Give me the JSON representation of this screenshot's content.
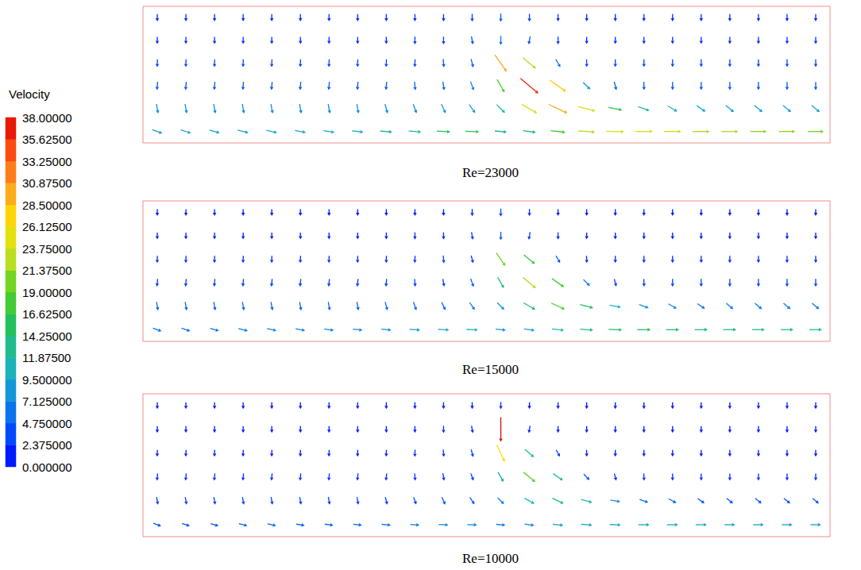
{
  "chart_data": [
    {
      "type": "quiver",
      "title": "Re=23000",
      "xlim": [
        0,
        24
      ],
      "ylim": [
        0,
        6
      ],
      "tick_labels": false,
      "x": [
        0.5,
        1.5,
        2.5,
        3.5,
        4.5,
        5.5,
        6.5,
        7.5,
        8.5,
        9.5,
        10.5,
        11.5,
        12.5,
        13.5,
        14.5,
        15.5,
        16.5,
        17.5,
        18.5,
        19.5,
        20.5,
        21.5,
        22.5,
        23.5
      ],
      "y": [
        5.5,
        4.5,
        3.5,
        2.5,
        1.5,
        0.5
      ],
      "speed": [
        [
          2,
          2,
          2,
          2,
          2,
          2,
          2,
          2,
          2,
          2,
          2,
          3,
          4,
          3,
          2,
          2,
          2,
          2,
          2,
          2,
          2,
          2,
          2,
          2
        ],
        [
          2,
          2,
          2,
          2,
          2,
          2,
          2,
          2,
          2,
          3,
          3,
          4,
          6,
          4,
          3,
          2,
          2,
          2,
          2,
          2,
          2,
          2,
          2,
          2
        ],
        [
          3,
          3,
          3,
          3,
          3,
          3,
          3,
          3,
          3,
          3,
          4,
          5,
          30,
          22,
          6,
          3,
          3,
          3,
          3,
          3,
          3,
          3,
          3,
          3
        ],
        [
          4,
          4,
          4,
          4,
          4,
          4,
          4,
          4,
          4,
          5,
          5,
          7,
          18,
          36,
          28,
          8,
          5,
          4,
          4,
          4,
          4,
          4,
          4,
          4
        ],
        [
          7,
          7,
          7,
          7,
          7,
          7,
          7,
          7,
          7,
          7,
          8,
          9,
          12,
          24,
          30,
          24,
          16,
          12,
          10,
          9,
          9,
          9,
          9,
          9
        ],
        [
          9,
          9,
          9,
          10,
          10,
          10,
          10,
          11,
          12,
          13,
          15,
          16,
          12,
          14,
          18,
          22,
          24,
          24,
          23,
          22,
          22,
          21,
          21,
          20
        ]
      ],
      "angle": [
        [
          -90,
          -90,
          -90,
          -90,
          -90,
          -90,
          -90,
          -90,
          -90,
          -90,
          -90,
          -90,
          -90,
          -90,
          -90,
          -90,
          -90,
          -90,
          -90,
          -90,
          -90,
          -90,
          -90,
          -90
        ],
        [
          -90,
          -90,
          -90,
          -90,
          -90,
          -90,
          -90,
          -90,
          -90,
          -90,
          -90,
          -80,
          -90,
          -100,
          -90,
          -90,
          -90,
          -90,
          -90,
          -90,
          -90,
          -90,
          -90,
          -90
        ],
        [
          -92,
          -92,
          -92,
          -92,
          -92,
          -92,
          -92,
          -92,
          -92,
          -92,
          -85,
          -75,
          -55,
          -40,
          -60,
          -88,
          -90,
          -90,
          -90,
          -90,
          -90,
          -90,
          -90,
          -90
        ],
        [
          -95,
          -95,
          -95,
          -95,
          -95,
          -95,
          -95,
          -95,
          -95,
          -85,
          -80,
          -70,
          -60,
          -40,
          -35,
          -45,
          -75,
          -88,
          -90,
          -90,
          -90,
          -90,
          -90,
          -90
        ],
        [
          -80,
          -80,
          -80,
          -80,
          -80,
          -80,
          -80,
          -80,
          -75,
          -70,
          -65,
          -55,
          -45,
          -30,
          -25,
          -15,
          -10,
          -20,
          -30,
          -35,
          -40,
          -40,
          -40,
          -40
        ],
        [
          -20,
          -18,
          -16,
          -14,
          -12,
          -10,
          -8,
          -6,
          -5,
          -4,
          -3,
          -2,
          -5,
          -8,
          -6,
          -4,
          -2,
          0,
          0,
          0,
          0,
          0,
          0,
          0
        ]
      ]
    },
    {
      "type": "quiver",
      "title": "Re=15000",
      "xlim": [
        0,
        24
      ],
      "ylim": [
        0,
        6
      ],
      "tick_labels": false,
      "x": [
        0.5,
        1.5,
        2.5,
        3.5,
        4.5,
        5.5,
        6.5,
        7.5,
        8.5,
        9.5,
        10.5,
        11.5,
        12.5,
        13.5,
        14.5,
        15.5,
        16.5,
        17.5,
        18.5,
        19.5,
        20.5,
        21.5,
        22.5,
        23.5
      ],
      "y": [
        5.5,
        4.5,
        3.5,
        2.5,
        1.5,
        0.5
      ],
      "speed": [
        [
          1,
          1,
          1,
          1,
          1,
          1,
          1,
          1,
          1,
          1,
          1,
          2,
          3,
          2,
          1,
          1,
          1,
          1,
          1,
          1,
          1,
          1,
          1,
          1
        ],
        [
          1,
          1,
          1,
          1,
          1,
          1,
          1,
          1,
          1,
          2,
          2,
          3,
          4,
          3,
          2,
          1,
          1,
          1,
          1,
          1,
          1,
          1,
          1,
          1
        ],
        [
          2,
          2,
          2,
          2,
          2,
          2,
          2,
          2,
          2,
          2,
          3,
          3,
          20,
          17,
          4,
          2,
          2,
          2,
          2,
          2,
          2,
          2,
          2,
          2
        ],
        [
          3,
          3,
          3,
          3,
          3,
          3,
          3,
          3,
          3,
          3,
          3,
          5,
          13,
          22,
          18,
          6,
          3,
          3,
          3,
          3,
          3,
          3,
          3,
          3
        ],
        [
          5,
          5,
          5,
          5,
          5,
          5,
          5,
          5,
          5,
          5,
          5,
          6,
          8,
          15,
          18,
          15,
          11,
          8,
          7,
          6,
          6,
          6,
          6,
          6
        ],
        [
          6,
          6,
          6,
          7,
          7,
          7,
          7,
          7,
          8,
          9,
          10,
          11,
          8,
          9,
          12,
          14,
          15,
          15,
          14,
          14,
          14,
          13,
          13,
          13
        ]
      ],
      "angle": [
        [
          -90,
          -90,
          -90,
          -90,
          -90,
          -90,
          -90,
          -90,
          -90,
          -90,
          -90,
          -90,
          -90,
          -90,
          -90,
          -90,
          -90,
          -90,
          -90,
          -90,
          -90,
          -90,
          -90,
          -90
        ],
        [
          -90,
          -90,
          -90,
          -90,
          -90,
          -90,
          -90,
          -90,
          -90,
          -90,
          -90,
          -80,
          -90,
          -100,
          -90,
          -90,
          -90,
          -90,
          -90,
          -90,
          -90,
          -90,
          -90,
          -90
        ],
        [
          -92,
          -92,
          -92,
          -92,
          -92,
          -92,
          -92,
          -92,
          -92,
          -92,
          -85,
          -75,
          -55,
          -40,
          -60,
          -88,
          -90,
          -90,
          -90,
          -90,
          -90,
          -90,
          -90,
          -90
        ],
        [
          -95,
          -95,
          -95,
          -95,
          -95,
          -95,
          -95,
          -95,
          -95,
          -85,
          -80,
          -70,
          -60,
          -40,
          -35,
          -45,
          -75,
          -88,
          -90,
          -90,
          -90,
          -90,
          -90,
          -90
        ],
        [
          -80,
          -80,
          -80,
          -80,
          -80,
          -80,
          -80,
          -80,
          -75,
          -70,
          -65,
          -55,
          -45,
          -30,
          -25,
          -15,
          -10,
          -20,
          -30,
          -35,
          -40,
          -40,
          -40,
          -40
        ],
        [
          -20,
          -18,
          -16,
          -14,
          -12,
          -10,
          -8,
          -6,
          -5,
          -4,
          -3,
          -2,
          -5,
          -8,
          -6,
          -4,
          -2,
          0,
          0,
          0,
          0,
          0,
          0,
          0
        ]
      ]
    },
    {
      "type": "quiver",
      "title": "Re=10000",
      "xlim": [
        0,
        24
      ],
      "ylim": [
        0,
        6
      ],
      "tick_labels": false,
      "x": [
        0.5,
        1.5,
        2.5,
        3.5,
        4.5,
        5.5,
        6.5,
        7.5,
        8.5,
        9.5,
        10.5,
        11.5,
        12.5,
        13.5,
        14.5,
        15.5,
        16.5,
        17.5,
        18.5,
        19.5,
        20.5,
        21.5,
        22.5,
        23.5
      ],
      "y": [
        5.5,
        4.5,
        3.5,
        2.5,
        1.5,
        0.5
      ],
      "speed": [
        [
          1,
          1,
          1,
          1,
          1,
          1,
          1,
          1,
          1,
          1,
          1,
          1,
          2,
          1,
          1,
          1,
          1,
          1,
          1,
          1,
          1,
          1,
          1,
          1
        ],
        [
          1,
          1,
          1,
          1,
          1,
          1,
          1,
          1,
          1,
          1,
          2,
          2,
          38,
          2,
          1,
          1,
          1,
          1,
          1,
          1,
          1,
          1,
          1,
          1
        ],
        [
          1,
          1,
          1,
          1,
          1,
          1,
          1,
          1,
          1,
          2,
          2,
          3,
          26,
          12,
          3,
          1,
          1,
          1,
          1,
          1,
          1,
          1,
          1,
          1
        ],
        [
          2,
          2,
          2,
          2,
          2,
          2,
          2,
          2,
          2,
          2,
          2,
          3,
          10,
          19,
          12,
          4,
          2,
          2,
          2,
          2,
          2,
          2,
          2,
          2
        ],
        [
          3,
          3,
          3,
          3,
          3,
          3,
          3,
          3,
          3,
          3,
          4,
          4,
          6,
          11,
          13,
          11,
          8,
          6,
          5,
          4,
          4,
          4,
          4,
          4
        ],
        [
          4,
          4,
          4,
          5,
          5,
          5,
          5,
          5,
          6,
          6,
          7,
          7,
          6,
          7,
          9,
          10,
          10,
          10,
          10,
          10,
          9,
          9,
          9,
          9
        ]
      ],
      "angle": [
        [
          -90,
          -90,
          -90,
          -90,
          -90,
          -90,
          -90,
          -90,
          -90,
          -90,
          -90,
          -90,
          -90,
          -90,
          -90,
          -90,
          -90,
          -90,
          -90,
          -90,
          -90,
          -90,
          -90,
          -90
        ],
        [
          -90,
          -90,
          -90,
          -90,
          -90,
          -90,
          -90,
          -90,
          -90,
          -90,
          -90,
          -80,
          -90,
          -100,
          -90,
          -90,
          -90,
          -90,
          -90,
          -90,
          -90,
          -90,
          -90,
          -90
        ],
        [
          -92,
          -92,
          -92,
          -92,
          -92,
          -92,
          -92,
          -92,
          -92,
          -92,
          -85,
          -75,
          -65,
          -40,
          -60,
          -88,
          -90,
          -90,
          -90,
          -90,
          -90,
          -90,
          -90,
          -90
        ],
        [
          -95,
          -95,
          -95,
          -95,
          -95,
          -95,
          -95,
          -95,
          -95,
          -85,
          -80,
          -70,
          -60,
          -40,
          -35,
          -45,
          -75,
          -88,
          -90,
          -90,
          -90,
          -90,
          -90,
          -90
        ],
        [
          -80,
          -80,
          -80,
          -80,
          -80,
          -80,
          -80,
          -80,
          -75,
          -70,
          -65,
          -55,
          -45,
          -30,
          -25,
          -15,
          -10,
          -20,
          -30,
          -35,
          -40,
          -40,
          -40,
          -40
        ],
        [
          -20,
          -18,
          -16,
          -14,
          -12,
          -10,
          -8,
          -6,
          -5,
          -4,
          -3,
          -2,
          -5,
          -8,
          -6,
          -4,
          -2,
          0,
          0,
          0,
          0,
          0,
          0,
          0
        ]
      ]
    }
  ],
  "colorbar": {
    "label": "Velocity",
    "range": [
      0,
      38
    ],
    "ticks": [
      {
        "value": 0,
        "label": "0.000000"
      },
      {
        "value": 2.375,
        "label": "2.375000"
      },
      {
        "value": 4.75,
        "label": "4.750000"
      },
      {
        "value": 7.125,
        "label": "7.125000"
      },
      {
        "value": 9.5,
        "label": "9.500000"
      },
      {
        "value": 11.875,
        "label": "11.87500"
      },
      {
        "value": 14.25,
        "label": "14.25000"
      },
      {
        "value": 16.625,
        "label": "16.62500"
      },
      {
        "value": 19,
        "label": "19.00000"
      },
      {
        "value": 21.375,
        "label": "21.37500"
      },
      {
        "value": 23.75,
        "label": "23.75000"
      },
      {
        "value": 26.125,
        "label": "26.12500"
      },
      {
        "value": 28.5,
        "label": "28.50000"
      },
      {
        "value": 30.875,
        "label": "30.87500"
      },
      {
        "value": 33.25,
        "label": "33.25000"
      },
      {
        "value": 35.625,
        "label": "35.62500"
      },
      {
        "value": 38,
        "label": "38.00000"
      }
    ]
  }
}
